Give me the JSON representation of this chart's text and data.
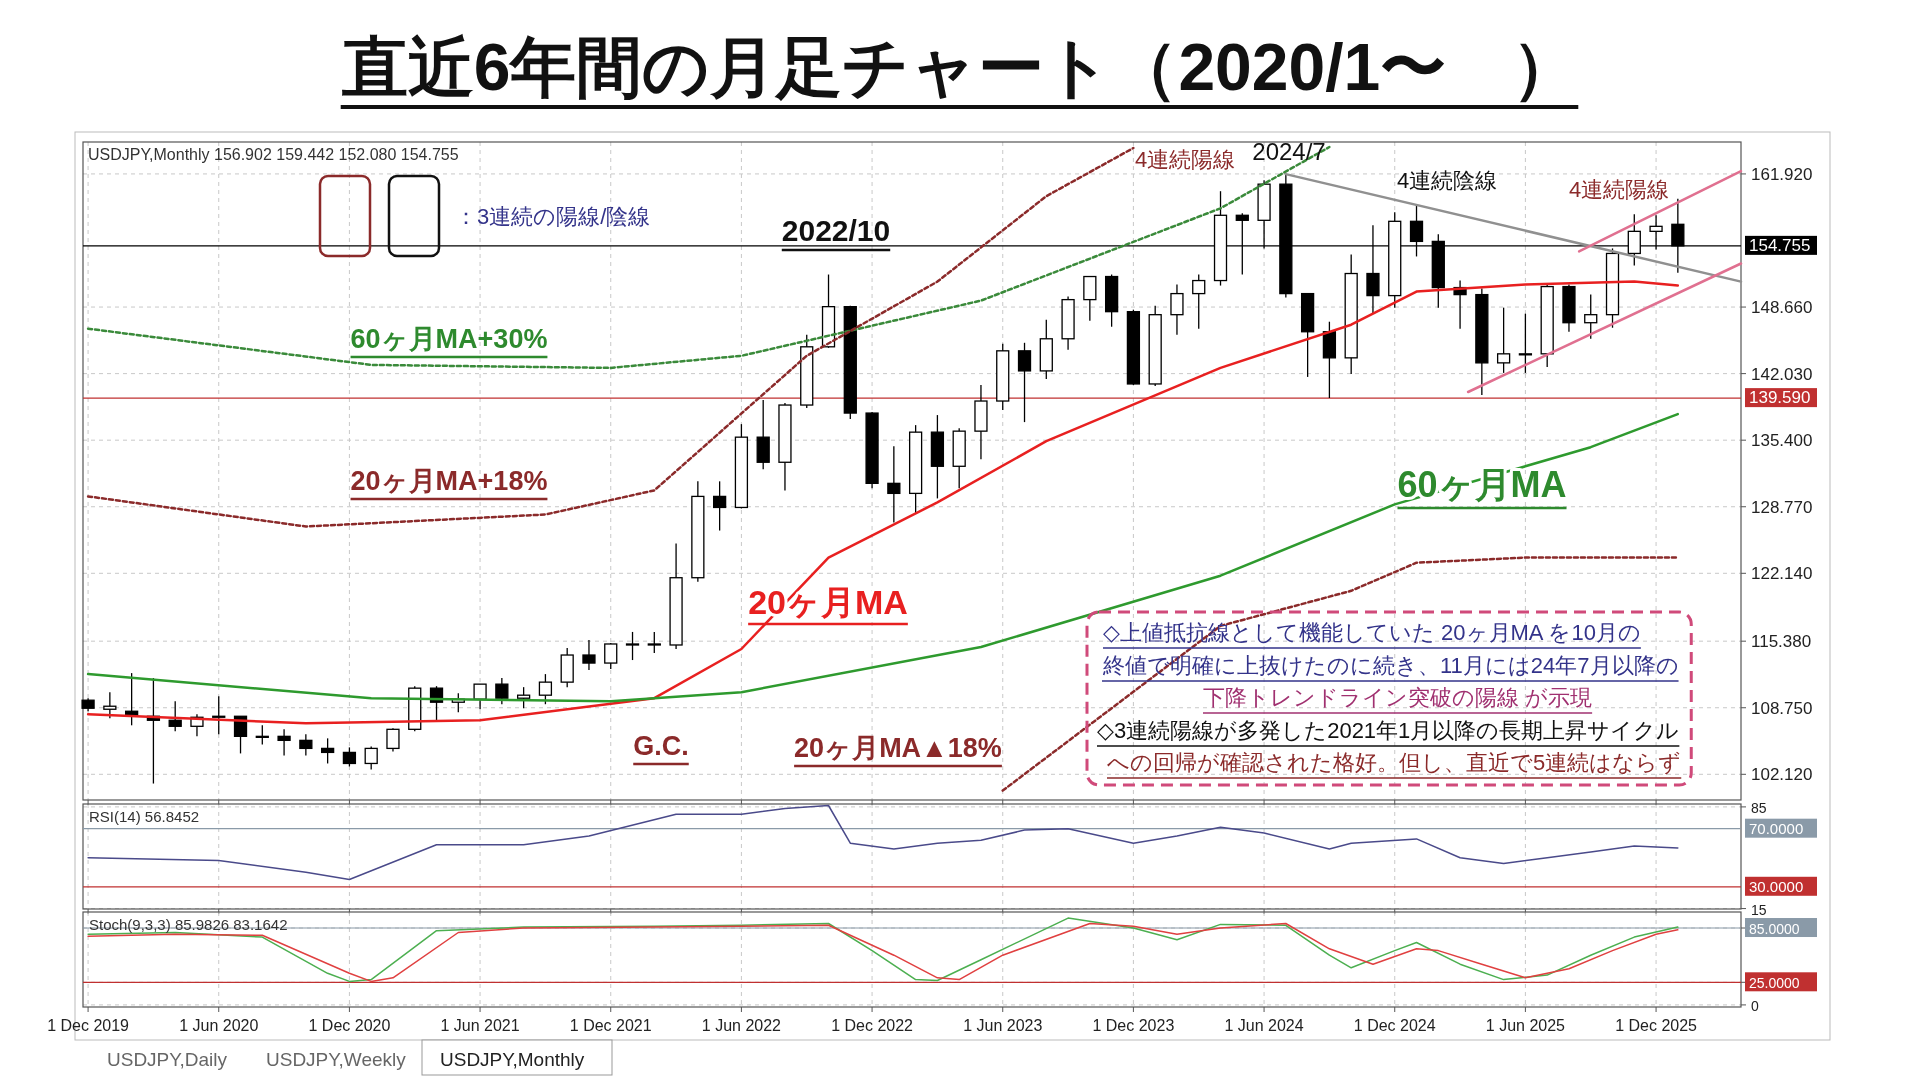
{
  "chart_data": [
    {
      "type": "candlestick",
      "title": "直近6年間の月足チャート（2020/1〜　）",
      "color": "#000000",
      "grid": true,
      "tick_labels": "y",
      "x": [
        "2019-12",
        "2020-01",
        "2020-02",
        "2020-03",
        "2020-04",
        "2020-05",
        "2020-06",
        "2020-07",
        "2020-08",
        "2020-09",
        "2020-10",
        "2020-11",
        "2020-12",
        "2021-01",
        "2021-02",
        "2021-03",
        "2021-04",
        "2021-05",
        "2021-06",
        "2021-07",
        "2021-08",
        "2021-09",
        "2021-10",
        "2021-11",
        "2021-12",
        "2022-01",
        "2022-02",
        "2022-03",
        "2022-04",
        "2022-05",
        "2022-06",
        "2022-07",
        "2022-08",
        "2022-09",
        "2022-10",
        "2022-11",
        "2022-12",
        "2023-01",
        "2023-02",
        "2023-03",
        "2023-04",
        "2023-05",
        "2023-06",
        "2023-07",
        "2023-08",
        "2023-09",
        "2023-10",
        "2023-11",
        "2023-12",
        "2024-01",
        "2024-02",
        "2024-03",
        "2024-04",
        "2024-05",
        "2024-06",
        "2024-07",
        "2024-08",
        "2024-09",
        "2024-10",
        "2024-11",
        "2024-12",
        "2025-01",
        "2025-02",
        "2025-03",
        "2025-04",
        "2025-05",
        "2025-06",
        "2025-07",
        "2025-08",
        "2025-09",
        "2025-10",
        "2025-11",
        "2025-12",
        "2026-01"
      ],
      "ohlc": [
        [
          109.5,
          109.7,
          108.4,
          108.7
        ],
        [
          108.6,
          110.3,
          107.7,
          108.9
        ],
        [
          108.4,
          112.2,
          107.0,
          107.9
        ],
        [
          107.9,
          111.7,
          101.2,
          107.5
        ],
        [
          107.5,
          109.4,
          106.4,
          106.9
        ],
        [
          106.9,
          108.1,
          105.9,
          107.8
        ],
        [
          107.8,
          109.9,
          106.1,
          107.9
        ],
        [
          107.9,
          107.9,
          104.2,
          105.9
        ],
        [
          105.9,
          107.0,
          105.1,
          105.9
        ],
        [
          105.9,
          106.6,
          104.0,
          105.5
        ],
        [
          105.5,
          106.1,
          104.0,
          104.7
        ],
        [
          104.7,
          105.7,
          103.2,
          104.3
        ],
        [
          104.3,
          104.8,
          102.9,
          103.2
        ],
        [
          103.2,
          104.9,
          102.6,
          104.7
        ],
        [
          104.7,
          106.7,
          104.4,
          106.6
        ],
        [
          106.6,
          110.9,
          106.4,
          110.7
        ],
        [
          110.7,
          110.9,
          107.5,
          109.3
        ],
        [
          109.3,
          110.2,
          108.3,
          109.6
        ],
        [
          109.6,
          111.1,
          108.6,
          111.1
        ],
        [
          111.1,
          111.7,
          109.1,
          109.7
        ],
        [
          109.7,
          110.8,
          108.7,
          110.0
        ],
        [
          110.0,
          112.1,
          109.1,
          111.3
        ],
        [
          111.3,
          114.7,
          110.8,
          114.0
        ],
        [
          114.0,
          115.5,
          112.5,
          113.2
        ],
        [
          113.2,
          115.2,
          112.6,
          115.1
        ],
        [
          115.1,
          116.3,
          113.5,
          115.1
        ],
        [
          115.1,
          116.3,
          114.2,
          115.0
        ],
        [
          115.0,
          125.1,
          114.6,
          121.7
        ],
        [
          121.7,
          131.3,
          121.3,
          129.8
        ],
        [
          129.8,
          131.3,
          126.4,
          128.7
        ],
        [
          128.7,
          137.0,
          128.6,
          135.7
        ],
        [
          135.7,
          139.4,
          132.5,
          133.2
        ],
        [
          133.2,
          139.1,
          130.4,
          138.9
        ],
        [
          138.9,
          145.9,
          138.6,
          144.7
        ],
        [
          144.7,
          151.9,
          144.6,
          148.7
        ],
        [
          148.7,
          148.8,
          137.5,
          138.1
        ],
        [
          138.1,
          138.2,
          130.6,
          131.1
        ],
        [
          131.1,
          134.8,
          127.2,
          130.1
        ],
        [
          130.1,
          136.9,
          128.1,
          136.2
        ],
        [
          136.2,
          137.9,
          129.6,
          132.8
        ],
        [
          132.8,
          136.6,
          130.6,
          136.3
        ],
        [
          136.3,
          140.9,
          133.5,
          139.3
        ],
        [
          139.3,
          145.0,
          138.4,
          144.3
        ],
        [
          144.3,
          145.1,
          137.2,
          142.3
        ],
        [
          142.3,
          147.4,
          141.5,
          145.5
        ],
        [
          145.5,
          149.7,
          144.4,
          149.4
        ],
        [
          149.4,
          151.7,
          147.3,
          151.7
        ],
        [
          151.7,
          151.9,
          146.7,
          148.2
        ],
        [
          148.2,
          148.4,
          140.9,
          141.0
        ],
        [
          141.0,
          148.8,
          140.8,
          147.9
        ],
        [
          147.9,
          150.9,
          145.9,
          150.0
        ],
        [
          150.0,
          151.9,
          146.5,
          151.3
        ],
        [
          151.3,
          160.2,
          150.8,
          157.8
        ],
        [
          157.8,
          158.0,
          151.9,
          157.3
        ],
        [
          157.3,
          161.3,
          154.5,
          160.9
        ],
        [
          160.9,
          161.9,
          149.6,
          150.0
        ],
        [
          150.0,
          150.0,
          141.7,
          146.2
        ],
        [
          146.2,
          147.2,
          139.6,
          143.6
        ],
        [
          143.6,
          153.9,
          142.0,
          152.0
        ],
        [
          152.0,
          156.8,
          148.0,
          149.8
        ],
        [
          149.8,
          158.1,
          148.6,
          157.2
        ],
        [
          157.2,
          158.9,
          153.7,
          155.2
        ],
        [
          155.2,
          155.9,
          148.6,
          150.6
        ],
        [
          150.6,
          151.3,
          146.5,
          149.9
        ],
        [
          149.9,
          150.5,
          139.9,
          143.1
        ],
        [
          143.1,
          148.6,
          142.1,
          144.0
        ],
        [
          144.0,
          148.0,
          142.1,
          144.0
        ],
        [
          144.0,
          150.9,
          142.7,
          150.7
        ],
        [
          150.7,
          150.9,
          146.2,
          147.1
        ],
        [
          147.1,
          149.9,
          145.5,
          147.9
        ],
        [
          147.9,
          154.5,
          146.6,
          154.0
        ],
        [
          154.0,
          157.9,
          152.8,
          156.2
        ],
        [
          156.2,
          157.8,
          154.4,
          156.7
        ],
        [
          156.902,
          159.442,
          152.08,
          154.755
        ]
      ],
      "series": [
        {
          "type": "line",
          "color": "#e82020",
          "x": [
            "2019-12",
            "2020-10",
            "2021-06",
            "2022-02",
            "2022-06",
            "2022-10",
            "2023-03",
            "2023-08",
            "2024-04",
            "2024-10",
            "2025-01",
            "2025-06",
            "2025-11",
            "2026-01"
          ],
          "values": [
            108.1,
            107.2,
            107.5,
            109.7,
            114.6,
            123.7,
            129.2,
            135.3,
            142.6,
            146.9,
            150.2,
            150.9,
            151.2,
            150.8
          ]
        },
        {
          "type": "line",
          "color": "#2e9a2e",
          "x": [
            "2019-12",
            "2021-01",
            "2021-12",
            "2022-06",
            "2023-05",
            "2024-04",
            "2024-12",
            "2025-09",
            "2026-01"
          ],
          "values": [
            112.1,
            109.7,
            109.4,
            110.3,
            114.8,
            121.9,
            129.0,
            134.7,
            138.0
          ]
        },
        {
          "type": "line",
          "color": "#3a8a3a",
          "line_style": "dashed",
          "x": [
            "2019-12",
            "2021-01",
            "2021-12",
            "2022-06",
            "2023-05",
            "2024-04",
            "2024-09"
          ],
          "values": [
            146.5,
            142.9,
            142.6,
            143.8,
            149.3,
            158.5,
            164.6
          ]
        },
        {
          "type": "line",
          "color": "#8b2a2a",
          "line_style": "dashed",
          "x": [
            "2019-12",
            "2020-10",
            "2021-09",
            "2022-02",
            "2022-09",
            "2023-03",
            "2023-08",
            "2023-12"
          ],
          "values": [
            129.8,
            126.8,
            128.0,
            130.4,
            143.8,
            151.2,
            159.7,
            164.5
          ]
        },
        {
          "type": "line",
          "color": "#8b2a2a",
          "line_style": "dashed",
          "x": [
            "2023-06",
            "2024-04",
            "2024-10",
            "2025-01",
            "2025-06",
            "2026-01"
          ],
          "values": [
            100.5,
            116.9,
            120.4,
            123.2,
            123.7,
            123.7
          ]
        },
        {
          "type": "line",
          "color": "#909090",
          "x": [
            "2024-07",
            "2026-03-28"
          ],
          "values": [
            161.9,
            151.2
          ]
        },
        {
          "type": "line",
          "color": "#e07090",
          "x": [
            "2025-08-15",
            "2026-03-28"
          ],
          "values": [
            154.2,
            162.2
          ]
        },
        {
          "type": "line",
          "color": "#e07090",
          "x": [
            "2025-03-12",
            "2026-03-28"
          ],
          "values": [
            140.2,
            153.0
          ]
        }
      ],
      "xlim": [
        "2019-11-24",
        "2026-03-28"
      ],
      "xticks": [
        "2019-12-01",
        "2020-06-01",
        "2020-12-01",
        "2021-06-01",
        "2021-12-01",
        "2022-06-01",
        "2022-12-01",
        "2023-06-01",
        "2023-12-01",
        "2024-06-01",
        "2024-12-01",
        "2025-06-01",
        "2025-12-01"
      ],
      "ylim": [
        99.56,
        165.1
      ],
      "yticks": [
        {
          "value": 102.12,
          "label": "102.120"
        },
        {
          "value": 108.75,
          "label": "108.750"
        },
        {
          "value": 115.38,
          "label": "115.380"
        },
        {
          "value": 122.14,
          "label": "122.140"
        },
        {
          "value": 128.77,
          "label": "128.770"
        },
        {
          "value": 135.4,
          "label": "135.400"
        },
        {
          "value": 142.03,
          "label": "142.030"
        },
        {
          "value": 148.66,
          "label": "148.660"
        },
        {
          "value": 161.92,
          "label": "161.920"
        }
      ],
      "ref_lines": [
        {
          "axis": "y",
          "value": 139.59,
          "label": "139.590",
          "color": "#c03030"
        },
        {
          "axis": "y",
          "value": 154.755,
          "label": "154.755",
          "color": "#000000"
        }
      ],
      "annotations": [
        "USDJPY,Monthly  156.902 159.442 152.080 154.755",
        "：3連続の陽線/陰線",
        "2022/10",
        "2024/7",
        "4連続陽線",
        "4連続陰線",
        "4連続陽線",
        "60ヶ月MA+30%",
        "20ヶ月MA+18%",
        "20ヶ月MA",
        "60ヶ月MA",
        "G.C.",
        "20ヶ月MA▲18%",
        "◇上値抵抗線として機能していた 20ヶ月MA を10月の",
        "終値で明確に上抜けたのに続き、11月には24年7月以降の",
        "下降トレンドライン突破の陽線 が示現",
        "◇3連続陽線が多発した2021年1月以降の長期上昇サイクル",
        "への回帰が確認された格好。但し、直近で5連続はならず",
        "USDJPY,Daily",
        "USDJPY,Weekly",
        "USDJPY,Monthly"
      ]
    },
    {
      "type": "line",
      "title": "RSI(14) 56.8452",
      "grid": true,
      "tick_labels": "y",
      "series": [
        {
          "color": "#4a4a8a",
          "x": [
            "2019-12",
            "2020-06",
            "2020-10",
            "2020-12",
            "2021-04",
            "2021-08",
            "2021-11",
            "2022-03",
            "2022-06",
            "2022-08",
            "2022-10",
            "2022-11",
            "2023-01",
            "2023-03",
            "2023-05",
            "2023-07",
            "2023-09",
            "2023-12",
            "2024-02",
            "2024-04",
            "2024-06",
            "2024-09",
            "2024-10",
            "2025-01",
            "2025-03",
            "2025-05",
            "2025-07",
            "2025-09",
            "2025-11",
            "2026-01"
          ],
          "values": [
            50,
            48,
            40,
            35,
            59,
            59,
            65,
            80,
            80,
            84,
            86,
            60,
            56,
            60,
            62,
            69,
            70,
            60,
            65,
            71,
            67,
            56,
            60,
            63,
            50,
            46,
            50,
            54,
            58,
            56.8
          ]
        }
      ],
      "xlim": [
        "2019-11-24",
        "2026-03-28"
      ],
      "xticks": [
        "2019-12-01",
        "2020-06-01",
        "2020-12-01",
        "2021-06-01",
        "2021-12-01",
        "2022-06-01",
        "2022-12-01",
        "2023-06-01",
        "2023-12-01",
        "2024-06-01",
        "2024-12-01",
        "2025-06-01",
        "2025-12-01"
      ],
      "ylim": [
        14.7,
        87
      ],
      "yticks": [
        15,
        85
      ],
      "ref_lines": [
        {
          "axis": "y",
          "value": 70,
          "label": "70.0000",
          "color": "#8a9aa8"
        },
        {
          "axis": "y",
          "value": 30,
          "label": "30.0000",
          "color": "#c03030"
        }
      ]
    },
    {
      "type": "line",
      "title": "Stoch(9,3,3) 85.9826 83.1642",
      "grid": true,
      "series": [
        {
          "color": "#4caf50",
          "x": [
            "2019-12",
            "2020-04",
            "2020-08",
            "2020-11",
            "2020-12",
            "2021-01",
            "2021-04",
            "2021-08",
            "2022-02",
            "2022-06",
            "2022-10",
            "2022-12",
            "2023-02",
            "2023-03",
            "2023-05",
            "2023-09",
            "2023-12",
            "2024-02",
            "2024-04",
            "2024-07",
            "2024-09",
            "2024-10",
            "2024-12",
            "2025-01",
            "2025-03",
            "2025-05",
            "2025-07",
            "2025-09",
            "2025-11",
            "2026-01"
          ],
          "values": [
            78,
            80,
            75,
            35,
            26,
            28,
            82,
            86,
            87,
            88,
            90,
            60,
            28,
            27,
            50,
            96,
            85,
            72,
            89,
            88,
            55,
            41,
            60,
            69,
            45,
            28,
            33,
            55,
            75,
            86
          ]
        },
        {
          "color": "#e04040",
          "x": [
            "2019-12",
            "2020-04",
            "2020-08",
            "2020-12",
            "2021-01",
            "2021-02",
            "2021-05",
            "2021-08",
            "2022-02",
            "2022-06",
            "2022-10",
            "2023-01",
            "2023-03",
            "2023-04",
            "2023-06",
            "2023-10",
            "2023-12",
            "2024-02",
            "2024-04",
            "2024-07",
            "2024-09",
            "2024-11",
            "2025-01",
            "2025-02",
            "2025-04",
            "2025-06",
            "2025-08",
            "2025-10",
            "2025-12",
            "2026-01"
          ],
          "values": [
            76,
            78,
            77,
            35,
            26,
            30,
            80,
            85,
            86,
            87,
            88,
            55,
            30,
            28,
            55,
            90,
            87,
            78,
            85,
            90,
            62,
            45,
            62,
            60,
            45,
            30,
            40,
            60,
            78,
            83
          ]
        }
      ],
      "xlim": [
        "2019-11-24",
        "2026-03-28"
      ],
      "xticks": [
        {
          "value": "2019-12-01",
          "label": "1 Dec 2019"
        },
        {
          "value": "2020-06-01",
          "label": "1 Jun 2020"
        },
        {
          "value": "2020-12-01",
          "label": "1 Dec 2020"
        },
        {
          "value": "2021-06-01",
          "label": "1 Jun 2021"
        },
        {
          "value": "2021-12-01",
          "label": "1 Dec 2021"
        },
        {
          "value": "2022-06-01",
          "label": "1 Jun 2022"
        },
        {
          "value": "2022-12-01",
          "label": "1 Dec 2022"
        },
        {
          "value": "2023-06-01",
          "label": "1 Jun 2023"
        },
        {
          "value": "2023-12-01",
          "label": "1 Dec 2023"
        },
        {
          "value": "2024-06-01",
          "label": "1 Jun 2024"
        },
        {
          "value": "2024-12-01",
          "label": "1 Dec 2024"
        },
        {
          "value": "2025-06-01",
          "label": "1 Jun 2025"
        },
        {
          "value": "2025-12-01",
          "label": "1 Dec 2025"
        }
      ],
      "ylim": [
        -2.3,
        102.7
      ],
      "yticks": [
        0,
        {
          "value": 25,
          "label": "25.0000"
        },
        {
          "value": 85,
          "label": "85.0000"
        }
      ],
      "ref_lines": [
        {
          "axis": "y",
          "value": 85,
          "color": "#8a9aa8"
        },
        {
          "axis": "y",
          "value": 25,
          "color": "#c03030"
        }
      ]
    }
  ]
}
